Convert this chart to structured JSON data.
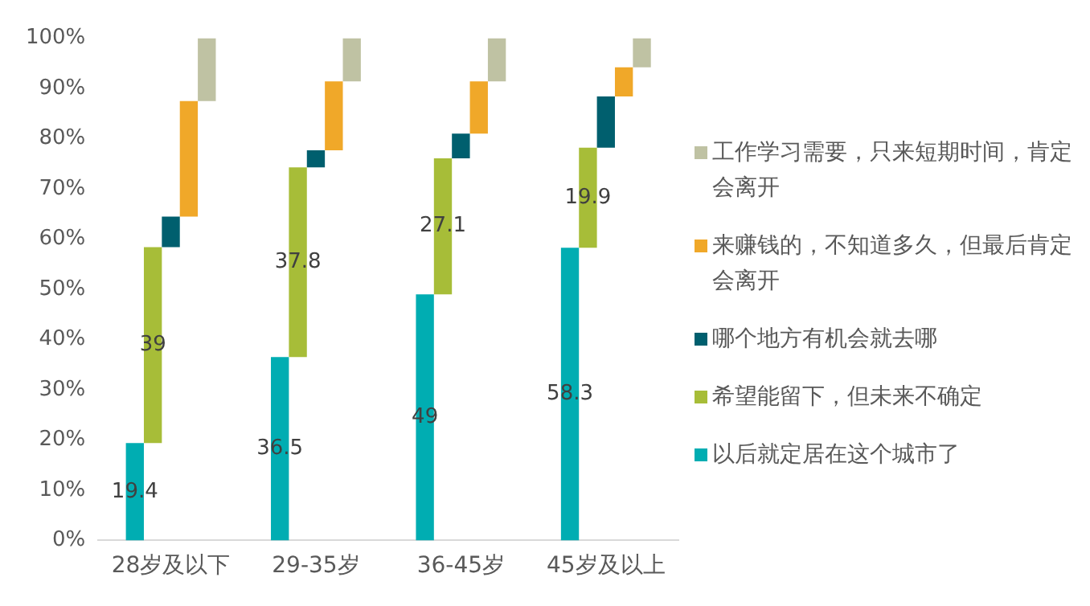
{
  "chart_data": {
    "type": "bar",
    "categories": [
      "28岁及以下",
      "29-35岁",
      "36-45岁",
      "45岁及以上"
    ],
    "series": [
      {
        "name": "以后就定居在这个城市了",
        "color": "#00adb2",
        "values": [
          19.4,
          36.5,
          49,
          58.3
        ],
        "base": [
          0,
          0,
          0,
          0
        ],
        "value_labels": [
          "19.4",
          "36.5",
          "49",
          "58.3"
        ]
      },
      {
        "name": "希望能留下，但未来不确定",
        "color": "#a7bd38",
        "values": [
          39,
          37.8,
          27.1,
          19.9
        ],
        "base": [
          19.4,
          36.5,
          49,
          58.3
        ],
        "value_labels": [
          "39",
          "37.8",
          "27.1",
          "19.9"
        ]
      },
      {
        "name": "哪个地方有机会就去哪",
        "color": "#005f6e",
        "values": [
          6.1,
          3.4,
          4.9,
          10.2
        ],
        "base": [
          58.4,
          74.3,
          76.1,
          78.2
        ]
      },
      {
        "name": "来赚钱的，不知道多久，但最后肯定会离开",
        "color": "#f0a829",
        "values": [
          23,
          13.7,
          10.4,
          5.8
        ],
        "base": [
          64.5,
          77.7,
          81,
          88.4
        ]
      },
      {
        "name": "工作学习需要，只来短期时间，肯定会离开",
        "color": "#bfc2a3",
        "values": [
          12.5,
          8.6,
          8.6,
          5.8
        ],
        "base": [
          87.5,
          91.4,
          91.4,
          94.2
        ]
      }
    ],
    "ylim": [
      0,
      100
    ],
    "yticks": [
      {
        "value": 0,
        "label": "0%"
      },
      {
        "value": 10,
        "label": "10%"
      },
      {
        "value": 20,
        "label": "20%"
      },
      {
        "value": 30,
        "label": "30%"
      },
      {
        "value": 40,
        "label": "40%"
      },
      {
        "value": 50,
        "label": "50%"
      },
      {
        "value": 60,
        "label": "60%"
      },
      {
        "value": 70,
        "label": "70%"
      },
      {
        "value": 80,
        "label": "80%"
      },
      {
        "value": 90,
        "label": "90%"
      },
      {
        "value": 100,
        "label": "100%"
      }
    ],
    "grid": false,
    "legend": "right"
  }
}
